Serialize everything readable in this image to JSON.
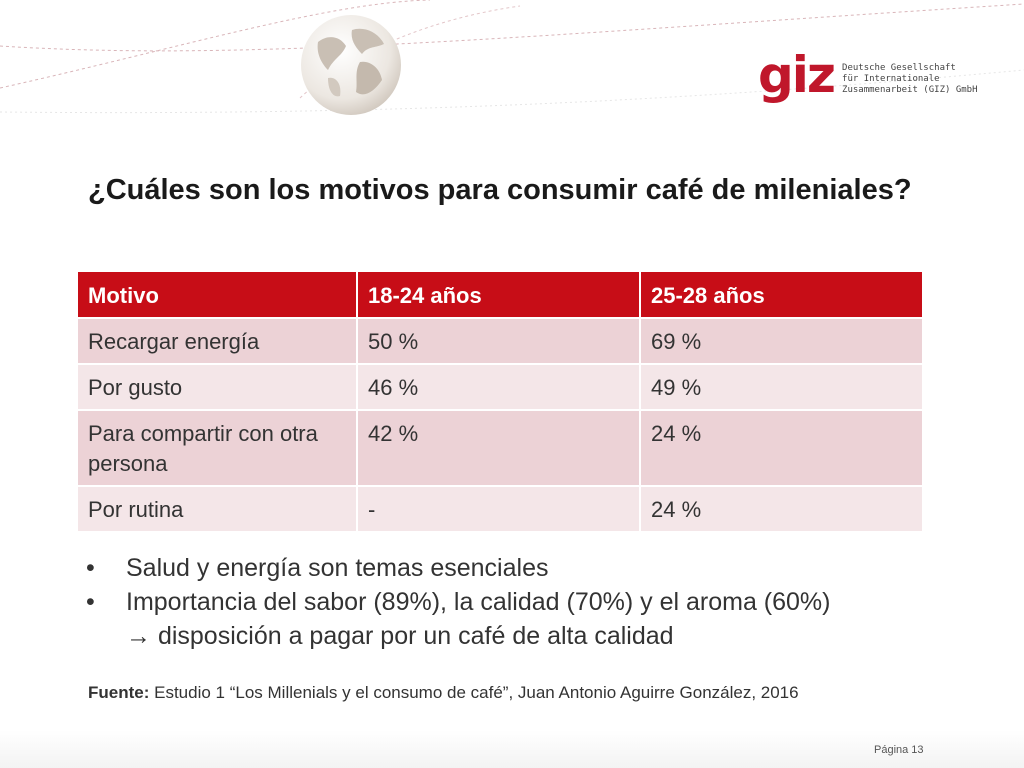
{
  "logo": {
    "mark": "giz",
    "lines": [
      "Deutsche Gesellschaft",
      "für Internationale",
      "Zusammenarbeit (GIZ) GmbH"
    ]
  },
  "title": "¿Cuáles son los motivos para consumir café de mileniales?",
  "table": {
    "headers": [
      "Motivo",
      "18-24 años",
      "25-28 años"
    ],
    "rows": [
      [
        "Recargar energía",
        "50 %",
        "69 %"
      ],
      [
        "Por gusto",
        "46 %",
        "49 %"
      ],
      [
        "Para compartir con otra persona",
        "42 %",
        "24 %"
      ],
      [
        "Por rutina",
        "-",
        "24 %"
      ]
    ]
  },
  "bullets": {
    "marker": "•",
    "items": [
      "Salud y energía son temas esenciales",
      "Importancia del sabor (89%), la calidad (70%) y el aroma (60%)",
      "→ disposición a pagar por un café de alta calidad"
    ]
  },
  "source": {
    "label": "Fuente:",
    "text": " Estudio 1 “Los Millenials y el consumo de café”, Juan Antonio Aguirre González, 2016"
  },
  "footer": {
    "page": "Página 13"
  },
  "colors": {
    "accent": "#c70d17",
    "row_odd": "#ecd2d6",
    "row_even": "#f4e6e8"
  }
}
